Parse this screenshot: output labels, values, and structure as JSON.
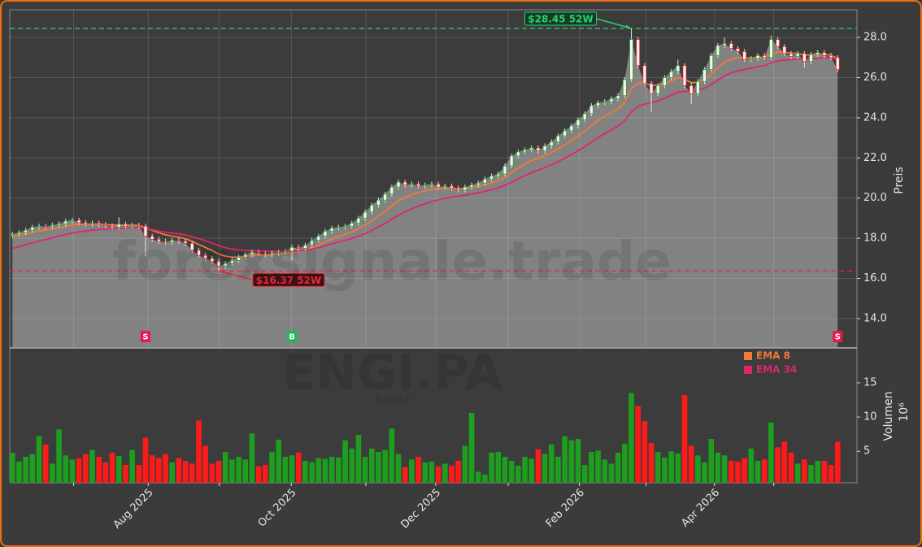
{
  "chart_data": {
    "type": "candlestick",
    "watermark": "forexsignale.trade",
    "symbol": "ENGI.PA",
    "name": "Engie",
    "ylabel": "Preis",
    "grid": true,
    "area_color": "#828282",
    "up_color": "#2ca02c",
    "down_color": "#e0262b",
    "xlim": [
      -0.4,
      126.9
    ],
    "xticks": [
      {
        "value": 9.2,
        "label": null
      },
      {
        "value": 20.4,
        "label": "Aug 2025"
      },
      {
        "value": 31.1,
        "label": null
      },
      {
        "value": 41.9,
        "label": "Oct 2025"
      },
      {
        "value": 53.1,
        "label": null
      },
      {
        "value": 63.6,
        "label": "Dec 2025"
      },
      {
        "value": 74.5,
        "label": null
      },
      {
        "value": 85.2,
        "label": "Feb 2026"
      },
      {
        "value": 95.2,
        "label": null
      },
      {
        "value": 105.5,
        "label": "Apr 2026"
      },
      {
        "value": 114.4,
        "label": null
      }
    ],
    "ylim": [
      12.54,
      29.38
    ],
    "yticks": [
      {
        "value": 14,
        "label": "14.0"
      },
      {
        "value": 16,
        "label": "16.0"
      },
      {
        "value": 18,
        "label": "18.0"
      },
      {
        "value": 20,
        "label": "20.0"
      },
      {
        "value": 22,
        "label": "22.0"
      },
      {
        "value": 24,
        "label": "24.0"
      },
      {
        "value": 26,
        "label": "26.0"
      },
      {
        "value": 28,
        "label": "28.0"
      }
    ],
    "open": [
      18.15,
      18.2,
      18.28,
      18.4,
      18.55,
      18.6,
      18.58,
      18.65,
      18.72,
      18.85,
      18.9,
      18.78,
      18.7,
      18.75,
      18.68,
      18.62,
      18.55,
      18.7,
      18.6,
      18.65,
      18.6,
      18.1,
      17.95,
      17.85,
      17.8,
      17.9,
      17.85,
      17.75,
      17.4,
      17.15,
      17.0,
      16.85,
      16.6,
      16.75,
      16.9,
      17.05,
      17.2,
      17.3,
      17.25,
      17.18,
      17.25,
      17.3,
      17.35,
      17.55,
      17.5,
      17.65,
      17.9,
      18.1,
      18.35,
      18.5,
      18.55,
      18.6,
      18.75,
      19.0,
      19.3,
      19.65,
      19.9,
      20.2,
      20.55,
      20.8,
      20.65,
      20.7,
      20.6,
      20.65,
      20.7,
      20.55,
      20.6,
      20.5,
      20.4,
      20.55,
      20.65,
      20.75,
      20.95,
      21.1,
      21.2,
      21.6,
      22.1,
      22.3,
      22.4,
      22.5,
      22.35,
      22.6,
      22.8,
      23.1,
      23.35,
      23.6,
      23.9,
      24.2,
      24.6,
      24.75,
      24.8,
      24.95,
      25.1,
      25.9,
      27.9,
      26.6,
      25.7,
      25.2,
      25.6,
      26.0,
      26.3,
      26.6,
      25.6,
      25.2,
      25.8,
      26.4,
      27.1,
      27.6,
      27.7,
      27.45,
      27.3,
      26.9,
      26.95,
      27.1,
      27.0,
      27.9,
      27.55,
      27.2,
      27.05,
      27.2,
      26.8,
      27.15,
      27.25,
      27.1,
      27.0
    ],
    "high": [
      18.32,
      18.4,
      18.52,
      18.67,
      18.72,
      18.72,
      18.77,
      18.84,
      18.97,
      19.02,
      19.02,
      18.9,
      18.87,
      18.87,
      18.8,
      18.74,
      19.05,
      18.82,
      18.77,
      18.77,
      18.72,
      18.22,
      18.07,
      17.97,
      18.02,
      18.02,
      17.97,
      17.87,
      17.52,
      17.27,
      17.12,
      16.97,
      16.87,
      17.02,
      17.17,
      17.32,
      17.42,
      17.42,
      17.37,
      17.37,
      17.42,
      17.47,
      17.67,
      17.67,
      17.77,
      18.02,
      18.22,
      18.47,
      18.62,
      18.67,
      18.72,
      18.87,
      19.12,
      19.42,
      19.77,
      20.02,
      20.32,
      20.67,
      20.92,
      20.92,
      20.82,
      20.82,
      20.77,
      20.82,
      20.82,
      20.72,
      20.72,
      20.62,
      20.67,
      20.77,
      20.87,
      21.07,
      21.22,
      21.32,
      21.72,
      22.22,
      22.42,
      22.52,
      22.62,
      22.62,
      22.72,
      22.92,
      23.22,
      23.47,
      23.72,
      24.02,
      24.32,
      24.72,
      24.87,
      24.92,
      25.07,
      25.22,
      26.02,
      28.45,
      28.02,
      26.72,
      25.82,
      25.72,
      26.12,
      26.42,
      26.9,
      26.72,
      25.72,
      25.92,
      26.52,
      27.22,
      27.72,
      28.0,
      27.82,
      27.57,
      27.42,
      27.07,
      27.22,
      27.22,
      28.1,
      28.02,
      27.67,
      27.32,
      27.32,
      27.32,
      27.27,
      27.37,
      27.37,
      27.22,
      27.12
    ],
    "low": [
      18.03,
      18.08,
      18.16,
      18.28,
      18.43,
      18.46,
      18.46,
      18.53,
      18.6,
      18.73,
      18.66,
      18.58,
      18.58,
      18.56,
      18.5,
      18.43,
      18.43,
      18.48,
      18.48,
      18.48,
      17.1,
      17.83,
      17.73,
      17.68,
      17.68,
      17.73,
      17.63,
      17.28,
      17.03,
      16.88,
      16.73,
      16.37,
      16.48,
      16.63,
      16.78,
      16.93,
      17.08,
      17.13,
      17.06,
      17.06,
      17.13,
      17.18,
      16.9,
      17.38,
      17.38,
      17.53,
      17.78,
      17.98,
      18.23,
      18.38,
      18.43,
      18.48,
      18.63,
      18.88,
      19.18,
      19.53,
      19.78,
      20.08,
      20.43,
      20.53,
      20.53,
      20.48,
      20.48,
      20.53,
      20.43,
      20.43,
      20.38,
      20.28,
      20.28,
      20.43,
      20.53,
      20.63,
      20.83,
      20.98,
      21.08,
      21.48,
      21.98,
      22.18,
      22.28,
      22.23,
      22.23,
      22.48,
      22.68,
      22.98,
      23.23,
      23.48,
      23.78,
      24.08,
      24.48,
      24.63,
      24.68,
      24.83,
      24.98,
      25.78,
      26.48,
      25.58,
      24.3,
      25.08,
      25.48,
      25.88,
      26.18,
      25.48,
      24.7,
      25.08,
      25.68,
      26.28,
      26.98,
      27.48,
      27.33,
      27.18,
      26.78,
      26.78,
      26.83,
      26.88,
      26.88,
      27.43,
      27.08,
      26.93,
      26.93,
      26.5,
      26.68,
      27.03,
      26.98,
      26.88,
      26.28
    ],
    "close": [
      18.2,
      18.28,
      18.4,
      18.55,
      18.6,
      18.58,
      18.65,
      18.72,
      18.85,
      18.9,
      18.78,
      18.7,
      18.75,
      18.68,
      18.62,
      18.55,
      18.7,
      18.6,
      18.65,
      18.6,
      18.1,
      17.95,
      17.85,
      17.8,
      17.9,
      17.85,
      17.75,
      17.4,
      17.15,
      17.0,
      16.85,
      16.6,
      16.75,
      16.9,
      17.05,
      17.2,
      17.3,
      17.25,
      17.18,
      17.25,
      17.3,
      17.35,
      17.55,
      17.5,
      17.65,
      17.9,
      18.1,
      18.35,
      18.5,
      18.55,
      18.6,
      18.75,
      19.0,
      19.3,
      19.65,
      19.9,
      20.2,
      20.55,
      20.8,
      20.65,
      20.7,
      20.6,
      20.65,
      20.7,
      20.55,
      20.6,
      20.5,
      20.4,
      20.55,
      20.65,
      20.75,
      20.95,
      21.1,
      21.2,
      21.6,
      22.1,
      22.3,
      22.4,
      22.5,
      22.35,
      22.6,
      22.8,
      23.1,
      23.35,
      23.6,
      23.9,
      24.2,
      24.6,
      24.75,
      24.8,
      24.95,
      25.1,
      25.9,
      27.9,
      26.6,
      25.7,
      25.2,
      25.6,
      26.0,
      26.3,
      26.6,
      25.6,
      25.2,
      25.8,
      26.4,
      27.1,
      27.6,
      27.7,
      27.45,
      27.3,
      26.9,
      26.95,
      27.1,
      27.0,
      27.9,
      27.55,
      27.2,
      27.05,
      27.2,
      26.8,
      27.15,
      27.25,
      27.1,
      27.0,
      26.4
    ],
    "series": [
      {
        "name": "EMA 8",
        "color": "#f07a3a",
        "values": [
          18.12,
          18.16,
          18.21,
          18.29,
          18.36,
          18.41,
          18.46,
          18.52,
          18.59,
          18.66,
          18.69,
          18.69,
          18.7,
          18.7,
          18.68,
          18.65,
          18.66,
          18.65,
          18.65,
          18.64,
          18.52,
          18.39,
          18.27,
          18.17,
          18.11,
          18.05,
          17.98,
          17.85,
          17.69,
          17.54,
          17.39,
          17.21,
          17.11,
          17.06,
          17.06,
          17.09,
          17.14,
          17.16,
          17.16,
          17.18,
          17.21,
          17.24,
          17.31,
          17.35,
          17.42,
          17.53,
          17.66,
          17.81,
          17.96,
          18.09,
          18.2,
          18.32,
          18.47,
          18.65,
          18.87,
          19.1,
          19.34,
          19.61,
          19.87,
          20.04,
          20.19,
          20.28,
          20.36,
          20.44,
          20.46,
          20.49,
          20.49,
          20.47,
          20.49,
          20.53,
          20.58,
          20.66,
          20.76,
          20.86,
          21.02,
          21.26,
          21.49,
          21.69,
          21.87,
          21.98,
          22.12,
          22.27,
          22.45,
          22.65,
          22.86,
          23.09,
          23.34,
          23.62,
          23.87,
          24.08,
          24.27,
          24.45,
          24.77,
          25.47,
          25.72,
          25.72,
          25.61,
          25.61,
          25.7,
          25.83,
          26.0,
          25.91,
          25.75,
          25.76,
          25.9,
          26.17,
          26.49,
          26.76,
          26.91,
          27.0,
          26.98,
          26.97,
          27.0,
          27.0,
          27.2,
          27.28,
          27.26,
          27.21,
          27.21,
          27.12,
          27.13,
          27.16,
          27.15,
          27.12,
          26.96
        ]
      },
      {
        "name": "EMA 34",
        "color": "#e0266b",
        "values": [
          17.49,
          17.58,
          17.67,
          17.77,
          17.86,
          17.94,
          18.02,
          18.1,
          18.18,
          18.26,
          18.32,
          18.36,
          18.4,
          18.43,
          18.45,
          18.46,
          18.49,
          18.5,
          18.52,
          18.53,
          18.48,
          18.42,
          18.36,
          18.3,
          18.26,
          18.21,
          18.16,
          18.08,
          17.98,
          17.87,
          17.76,
          17.63,
          17.53,
          17.46,
          17.41,
          17.39,
          17.38,
          17.37,
          17.35,
          17.34,
          17.34,
          17.34,
          17.36,
          17.38,
          17.41,
          17.46,
          17.53,
          17.62,
          17.72,
          17.81,
          17.9,
          17.99,
          18.1,
          18.23,
          18.39,
          18.56,
          18.74,
          18.94,
          19.15,
          19.32,
          19.47,
          19.6,
          19.72,
          19.83,
          19.91,
          19.99,
          20.05,
          20.09,
          20.14,
          20.2,
          20.26,
          20.34,
          20.42,
          20.51,
          20.63,
          20.79,
          20.96,
          21.12,
          21.27,
          21.39,
          21.52,
          21.66,
          21.82,
          21.99,
          22.17,
          22.36,
          22.56,
          22.79,
          23.01,
          23.21,
          23.4,
          23.59,
          23.85,
          24.3,
          24.56,
          24.69,
          24.75,
          24.84,
          24.97,
          25.12,
          25.28,
          25.32,
          25.31,
          25.36,
          25.48,
          25.66,
          25.88,
          26.08,
          26.23,
          26.35,
          26.41,
          26.47,
          26.54,
          26.59,
          26.74,
          26.83,
          26.87,
          26.89,
          26.92,
          26.91,
          26.94,
          26.97,
          26.98,
          26.98,
          26.92
        ]
      }
    ],
    "legend": "upper right",
    "annotations": [
      {
        "label": "$28.45 52W",
        "value": 28.45,
        "x": 93,
        "color": "#2ecc71"
      },
      {
        "label": "$16.37 52W",
        "value": 16.37,
        "x": 31,
        "color": "#e8283c"
      }
    ],
    "signals": [
      {
        "label": "S",
        "x": 20,
        "color": "#e8184d"
      },
      {
        "label": "B",
        "x": 42,
        "color": "#1db954"
      },
      {
        "label": "S",
        "x": 124,
        "color": "#e8184d"
      }
    ],
    "volume": {
      "ylabel": "Volumen",
      "offset_label": "10⁶",
      "up_color": "#1e9e1e",
      "down_color": "#ff1a1a",
      "ylim": [
        0.4,
        20.1
      ],
      "yticks": [
        5,
        10,
        15
      ],
      "values": [
        4.8,
        3.5,
        4.2,
        4.6,
        7.2,
        6.0,
        3.2,
        8.2,
        4.4,
        3.8,
        4.0,
        4.6,
        5.2,
        4.2,
        3.4,
        4.8,
        4.3,
        3.0,
        5.2,
        3.0,
        7.0,
        4.4,
        4.0,
        4.6,
        3.4,
        4.0,
        3.6,
        3.2,
        9.5,
        5.8,
        3.2,
        3.6,
        4.9,
        3.8,
        4.2,
        3.8,
        7.6,
        2.8,
        3.0,
        4.9,
        6.7,
        4.2,
        4.4,
        4.8,
        3.6,
        3.4,
        4.0,
        3.9,
        4.2,
        4.1,
        6.6,
        5.4,
        7.4,
        4.2,
        5.4,
        4.9,
        5.2,
        8.3,
        4.6,
        2.7,
        3.8,
        4.2,
        3.4,
        3.5,
        2.8,
        3.2,
        2.9,
        3.6,
        5.8,
        10.6,
        2.0,
        1.6,
        4.8,
        4.9,
        4.2,
        3.6,
        2.9,
        4.2,
        3.9,
        5.3,
        4.6,
        6.0,
        4.2,
        7.2,
        6.6,
        6.8,
        3.0,
        4.9,
        5.1,
        3.8,
        3.2,
        4.8,
        6.1,
        13.5,
        11.6,
        9.4,
        6.2,
        4.9,
        4.1,
        5.0,
        4.7,
        13.2,
        5.8,
        4.4,
        3.4,
        6.8,
        4.8,
        4.4,
        3.6,
        3.5,
        4.0,
        5.4,
        3.6,
        3.8,
        9.2,
        5.6,
        6.4,
        4.8,
        3.2,
        3.8,
        3.0,
        3.6,
        3.6,
        3.0,
        6.4
      ]
    }
  }
}
